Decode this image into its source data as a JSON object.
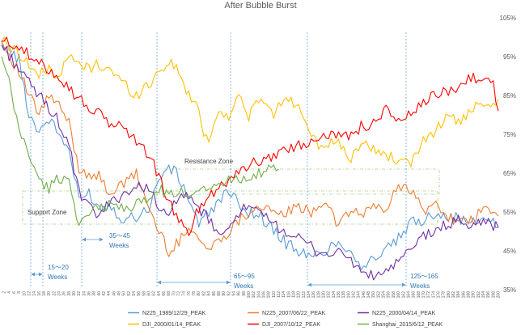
{
  "chart_data": {
    "type": "line",
    "title": "After Bubble Burst",
    "ylim": [
      35,
      105
    ],
    "yticks": [
      "35%",
      "45%",
      "55%",
      "65%",
      "75%",
      "85%",
      "95%",
      "105%"
    ],
    "xlim": [
      1,
      200
    ],
    "grid": false,
    "legend_position": "bottom",
    "series": [
      {
        "name": "N225_1989/12/29_PEAK",
        "color": "#5b9bd5",
        "points": [
          [
            1,
            99
          ],
          [
            8,
            94
          ],
          [
            12,
            80
          ],
          [
            16,
            76
          ],
          [
            20,
            79
          ],
          [
            24,
            75
          ],
          [
            28,
            71
          ],
          [
            32,
            58
          ],
          [
            36,
            60
          ],
          [
            40,
            56
          ],
          [
            44,
            57
          ],
          [
            50,
            53
          ],
          [
            55,
            54
          ],
          [
            60,
            56
          ],
          [
            65,
            65
          ],
          [
            70,
            66
          ],
          [
            75,
            60
          ],
          [
            80,
            52
          ],
          [
            85,
            55
          ],
          [
            90,
            60
          ],
          [
            95,
            58
          ],
          [
            100,
            55
          ],
          [
            105,
            54
          ],
          [
            110,
            50
          ],
          [
            115,
            47
          ],
          [
            120,
            45
          ],
          [
            125,
            43
          ],
          [
            130,
            45
          ],
          [
            135,
            47
          ],
          [
            140,
            46
          ],
          [
            145,
            41
          ],
          [
            150,
            43
          ],
          [
            155,
            45
          ],
          [
            160,
            48
          ],
          [
            165,
            52
          ],
          [
            170,
            53
          ],
          [
            175,
            55
          ],
          [
            180,
            54
          ],
          [
            185,
            53
          ],
          [
            190,
            52
          ],
          [
            195,
            54
          ],
          [
            200,
            51
          ]
        ]
      },
      {
        "name": "N225_2007/06/22_PEAK",
        "color": "#ed7d31",
        "points": [
          [
            1,
            99
          ],
          [
            8,
            91
          ],
          [
            12,
            85
          ],
          [
            16,
            80
          ],
          [
            20,
            85
          ],
          [
            24,
            82
          ],
          [
            28,
            78
          ],
          [
            32,
            66
          ],
          [
            36,
            65
          ],
          [
            40,
            64
          ],
          [
            44,
            60
          ],
          [
            50,
            62
          ],
          [
            55,
            65
          ],
          [
            60,
            56
          ],
          [
            64,
            50
          ],
          [
            68,
            45
          ],
          [
            72,
            47
          ],
          [
            76,
            52
          ],
          [
            80,
            48
          ],
          [
            84,
            45
          ],
          [
            88,
            48
          ],
          [
            92,
            50
          ],
          [
            96,
            53
          ],
          [
            100,
            55
          ],
          [
            105,
            57
          ],
          [
            110,
            54
          ],
          [
            115,
            55
          ],
          [
            120,
            56
          ],
          [
            125,
            55
          ],
          [
            130,
            58
          ],
          [
            135,
            52
          ],
          [
            140,
            55
          ],
          [
            145,
            54
          ],
          [
            150,
            57
          ],
          [
            155,
            55
          ],
          [
            160,
            62
          ],
          [
            165,
            61
          ],
          [
            170,
            55
          ],
          [
            175,
            57
          ],
          [
            180,
            54
          ],
          [
            185,
            52
          ],
          [
            190,
            53
          ],
          [
            195,
            56
          ],
          [
            200,
            54
          ]
        ]
      },
      {
        "name": "N225_2000/04/14_PEAK",
        "color": "#7030a0",
        "points": [
          [
            1,
            98
          ],
          [
            8,
            92
          ],
          [
            12,
            88
          ],
          [
            16,
            85
          ],
          [
            20,
            82
          ],
          [
            24,
            78
          ],
          [
            28,
            72
          ],
          [
            32,
            60
          ],
          [
            36,
            56
          ],
          [
            40,
            54
          ],
          [
            44,
            57
          ],
          [
            50,
            60
          ],
          [
            55,
            61
          ],
          [
            60,
            62
          ],
          [
            64,
            56
          ],
          [
            68,
            53
          ],
          [
            72,
            60
          ],
          [
            76,
            58
          ],
          [
            80,
            56
          ],
          [
            85,
            52
          ],
          [
            90,
            48
          ],
          [
            95,
            55
          ],
          [
            100,
            56
          ],
          [
            105,
            54
          ],
          [
            110,
            52
          ],
          [
            115,
            50
          ],
          [
            120,
            48
          ],
          [
            125,
            46
          ],
          [
            130,
            44
          ],
          [
            135,
            45
          ],
          [
            140,
            43
          ],
          [
            145,
            40
          ],
          [
            150,
            38
          ],
          [
            155,
            40
          ],
          [
            160,
            42
          ],
          [
            165,
            45
          ],
          [
            170,
            49
          ],
          [
            175,
            50
          ],
          [
            180,
            52
          ],
          [
            185,
            53
          ],
          [
            190,
            51
          ],
          [
            195,
            53
          ],
          [
            200,
            51
          ]
        ]
      },
      {
        "name": "DJI_2000/01/14_PEAK",
        "color": "#ffc000",
        "points": [
          [
            1,
            99
          ],
          [
            8,
            96
          ],
          [
            12,
            93
          ],
          [
            16,
            90
          ],
          [
            20,
            92
          ],
          [
            24,
            90
          ],
          [
            28,
            95
          ],
          [
            32,
            93
          ],
          [
            36,
            92
          ],
          [
            40,
            93
          ],
          [
            44,
            92
          ],
          [
            50,
            88
          ],
          [
            55,
            85
          ],
          [
            60,
            88
          ],
          [
            64,
            91
          ],
          [
            68,
            94
          ],
          [
            72,
            91
          ],
          [
            76,
            85
          ],
          [
            80,
            81
          ],
          [
            82,
            76
          ],
          [
            84,
            73
          ],
          [
            88,
            82
          ],
          [
            92,
            79
          ],
          [
            96,
            85
          ],
          [
            100,
            80
          ],
          [
            105,
            84
          ],
          [
            110,
            80
          ],
          [
            115,
            85
          ],
          [
            120,
            82
          ],
          [
            125,
            76
          ],
          [
            130,
            70
          ],
          [
            135,
            74
          ],
          [
            140,
            68
          ],
          [
            145,
            73
          ],
          [
            150,
            71
          ],
          [
            155,
            70
          ],
          [
            160,
            68
          ],
          [
            165,
            67
          ],
          [
            170,
            74
          ],
          [
            175,
            76
          ],
          [
            180,
            80
          ],
          [
            185,
            78
          ],
          [
            190,
            82
          ],
          [
            195,
            81
          ],
          [
            200,
            84
          ]
        ]
      },
      {
        "name": "DJI_2007/10/12_PEAK",
        "color": "#ff0000",
        "points": [
          [
            1,
            99
          ],
          [
            8,
            98
          ],
          [
            12,
            95
          ],
          [
            16,
            93
          ],
          [
            20,
            92
          ],
          [
            24,
            90
          ],
          [
            28,
            87
          ],
          [
            32,
            84
          ],
          [
            36,
            82
          ],
          [
            40,
            80
          ],
          [
            44,
            78
          ],
          [
            50,
            77
          ],
          [
            55,
            73
          ],
          [
            60,
            70
          ],
          [
            64,
            64
          ],
          [
            68,
            58
          ],
          [
            72,
            52
          ],
          [
            76,
            50
          ],
          [
            80,
            56
          ],
          [
            84,
            59
          ],
          [
            88,
            62
          ],
          [
            92,
            63
          ],
          [
            96,
            66
          ],
          [
            100,
            67
          ],
          [
            105,
            68
          ],
          [
            110,
            70
          ],
          [
            115,
            71
          ],
          [
            120,
            72
          ],
          [
            125,
            73
          ],
          [
            130,
            76
          ],
          [
            135,
            74
          ],
          [
            140,
            75
          ],
          [
            145,
            77
          ],
          [
            150,
            78
          ],
          [
            155,
            81
          ],
          [
            160,
            79
          ],
          [
            165,
            80
          ],
          [
            170,
            83
          ],
          [
            175,
            85
          ],
          [
            180,
            86
          ],
          [
            185,
            88
          ],
          [
            190,
            90
          ],
          [
            195,
            89
          ],
          [
            198,
            88
          ],
          [
            200,
            81
          ]
        ]
      },
      {
        "name": "Shanghai_2015/6/12_PEAK",
        "color": "#70ad47",
        "points": [
          [
            1,
            95
          ],
          [
            4,
            88
          ],
          [
            8,
            76
          ],
          [
            12,
            70
          ],
          [
            16,
            63
          ],
          [
            20,
            61
          ],
          [
            24,
            64
          ],
          [
            28,
            63
          ],
          [
            32,
            52
          ],
          [
            36,
            54
          ],
          [
            40,
            56
          ],
          [
            44,
            57
          ],
          [
            50,
            56
          ],
          [
            55,
            57
          ],
          [
            60,
            58
          ],
          [
            64,
            61
          ],
          [
            68,
            59
          ],
          [
            72,
            60
          ],
          [
            76,
            60
          ],
          [
            80,
            61
          ],
          [
            84,
            62
          ],
          [
            88,
            62
          ],
          [
            92,
            63
          ],
          [
            96,
            64
          ],
          [
            100,
            64
          ],
          [
            105,
            65
          ],
          [
            110,
            66
          ],
          [
            112,
            66
          ]
        ]
      }
    ],
    "annotations": [
      "Resistance Zone",
      "Support Zone",
      "15～20",
      "Weeks",
      "35～45",
      "Weeks",
      "65～95",
      "Weeks",
      "125～165",
      "Weeks"
    ]
  }
}
